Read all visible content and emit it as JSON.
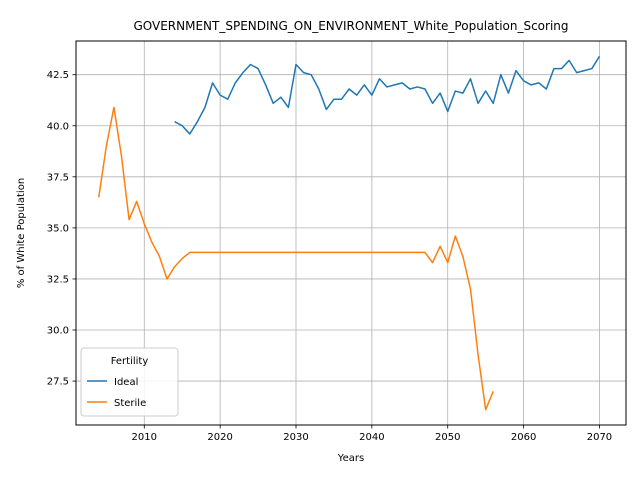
{
  "chart_data": {
    "type": "line",
    "title": "GOVERNMENT_SPENDING_ON_ENVIRONMENT_White_Population_Scoring",
    "xlabel": "Years",
    "ylabel": "% of White Population",
    "xlim": [
      2001,
      2073.5
    ],
    "ylim": [
      25.35,
      44.15
    ],
    "xticks": [
      2010,
      2020,
      2030,
      2040,
      2050,
      2060,
      2070
    ],
    "yticks": [
      27.5,
      30.0,
      32.5,
      35.0,
      37.5,
      40.0,
      42.5
    ],
    "grid": true,
    "legend": {
      "title": "Fertility",
      "position": "lower-left"
    },
    "series": [
      {
        "name": "Ideal",
        "color": "#1f77b4",
        "x": [
          2014,
          2015,
          2016,
          2017,
          2018,
          2019,
          2020,
          2021,
          2022,
          2023,
          2024,
          2025,
          2026,
          2027,
          2028,
          2029,
          2030,
          2031,
          2032,
          2033,
          2034,
          2035,
          2036,
          2037,
          2038,
          2039,
          2040,
          2041,
          2042,
          2043,
          2044,
          2045,
          2046,
          2047,
          2048,
          2049,
          2050,
          2051,
          2052,
          2053,
          2054,
          2055,
          2056,
          2057,
          2058,
          2059,
          2060,
          2061,
          2062,
          2063,
          2064,
          2065,
          2066,
          2067,
          2068,
          2069,
          2070
        ],
        "y": [
          40.2,
          40.0,
          39.6,
          40.2,
          40.9,
          42.1,
          41.5,
          41.3,
          42.1,
          42.6,
          43.0,
          42.8,
          42.0,
          41.1,
          41.4,
          40.9,
          43.0,
          42.6,
          42.5,
          41.8,
          40.8,
          41.3,
          41.3,
          41.8,
          41.5,
          42.0,
          41.5,
          42.3,
          41.9,
          42.0,
          42.1,
          41.8,
          41.9,
          41.8,
          41.1,
          41.6,
          40.7,
          41.7,
          41.6,
          42.3,
          41.1,
          41.7,
          41.1,
          42.5,
          41.6,
          42.7,
          42.2,
          42.0,
          42.1,
          41.8,
          42.8,
          42.8,
          43.2,
          42.6,
          42.7,
          42.8,
          43.4
        ]
      },
      {
        "name": "Sterile",
        "color": "#ff7f0e",
        "x": [
          2004,
          2005,
          2006,
          2007,
          2008,
          2009,
          2010,
          2011,
          2012,
          2013,
          2014,
          2015,
          2016,
          2017,
          2018,
          2019,
          2020,
          2021,
          2022,
          2023,
          2024,
          2025,
          2026,
          2027,
          2028,
          2029,
          2030,
          2031,
          2032,
          2033,
          2034,
          2035,
          2036,
          2037,
          2038,
          2039,
          2040,
          2041,
          2042,
          2043,
          2044,
          2045,
          2046,
          2047,
          2048,
          2049,
          2050,
          2051,
          2052,
          2053,
          2054,
          2055,
          2056
        ],
        "y": [
          36.5,
          39.0,
          40.9,
          38.5,
          35.4,
          36.3,
          35.2,
          34.3,
          33.6,
          32.5,
          33.1,
          33.5,
          33.8,
          33.8,
          33.8,
          33.8,
          33.8,
          33.8,
          33.8,
          33.8,
          33.8,
          33.8,
          33.8,
          33.8,
          33.8,
          33.8,
          33.8,
          33.8,
          33.8,
          33.8,
          33.8,
          33.8,
          33.8,
          33.8,
          33.8,
          33.8,
          33.8,
          33.8,
          33.8,
          33.8,
          33.8,
          33.8,
          33.8,
          33.8,
          33.3,
          34.1,
          33.3,
          34.6,
          33.6,
          32.0,
          28.8,
          26.1,
          27.0
        ]
      }
    ]
  }
}
